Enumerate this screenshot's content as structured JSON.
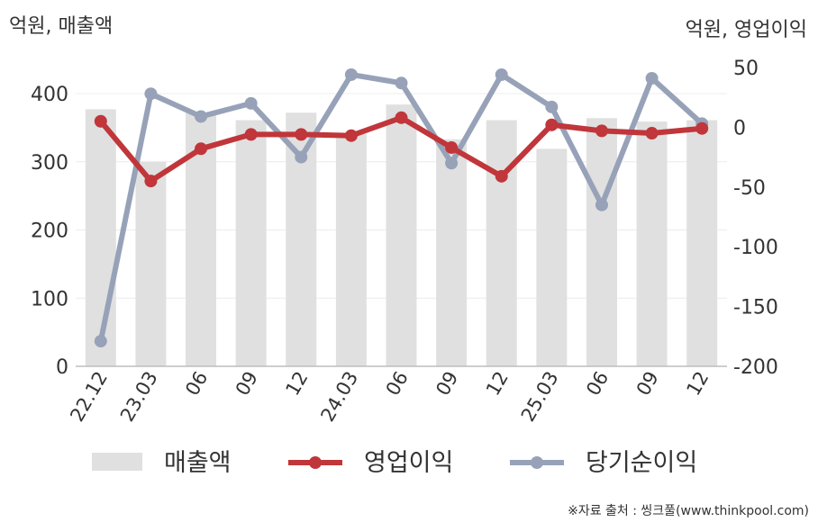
{
  "chart_data": {
    "type": "bar+line",
    "categories": [
      "22.12",
      "23.03",
      "06",
      "09",
      "12",
      "24.03",
      "06",
      "09",
      "12",
      "25.03",
      "06",
      "09",
      "12"
    ],
    "left_unit": "억원, 매출액",
    "right_unit": "억원, 영업이익",
    "left_axis": {
      "min": 0,
      "max": 400,
      "ticks": [
        0,
        100,
        200,
        300,
        400
      ]
    },
    "right_axis": {
      "min": -200,
      "max": 50,
      "ticks": [
        50,
        0,
        -50,
        -100,
        -150,
        -200
      ]
    },
    "series": [
      {
        "name": "매출액",
        "type": "bar",
        "axis": "left",
        "color": "#e0e0e0",
        "values": [
          377,
          300,
          372,
          361,
          372,
          341,
          384,
          333,
          361,
          319,
          364,
          359,
          361
        ]
      },
      {
        "name": "영업이익",
        "type": "line",
        "axis": "right",
        "color": "#c0363a",
        "values": [
          5,
          -45,
          -18,
          -6,
          -6,
          -7,
          8,
          -17,
          -41,
          2,
          -3,
          -5,
          -1
        ]
      },
      {
        "name": "당기순이익",
        "type": "line",
        "axis": "right",
        "color": "#97a2b8",
        "values": [
          -179,
          28,
          9,
          20,
          -25,
          44,
          37,
          -30,
          44,
          17,
          -65,
          41,
          3
        ]
      }
    ],
    "grid": true,
    "legend_position": "bottom"
  },
  "source": "※자료 출처 : 씽크풀(www.thinkpool.com)"
}
